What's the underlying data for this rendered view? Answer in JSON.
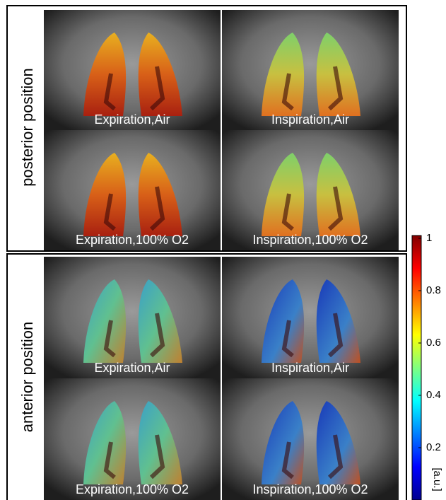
{
  "panels": [
    {
      "position": "posterior position",
      "images": [
        "Expiration,Air",
        "Inspiration,Air",
        "Expiration,100% O2",
        "Inspiration,100% O2"
      ]
    },
    {
      "position": "anterior position",
      "images": [
        "Expiration,Air",
        "Inspiration,Air",
        "Expiration,100% O2",
        "Inspiration,100% O2"
      ]
    }
  ],
  "colorbar": {
    "lim": [
      0,
      1
    ],
    "ticks": [
      0.2,
      0.4,
      0.6,
      0.8,
      1
    ],
    "label": "[a.u.]"
  }
}
